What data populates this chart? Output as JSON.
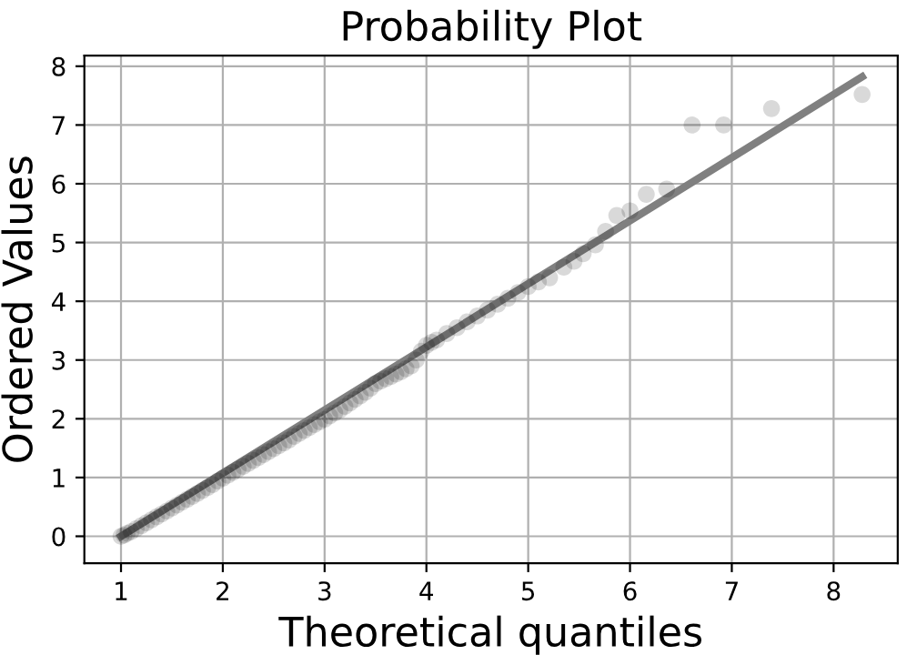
{
  "chart_data": {
    "type": "scatter",
    "title": "Probability Plot",
    "xlabel": "Theoretical quantiles",
    "ylabel": "Ordered Values",
    "xlim": [
      0.64,
      8.63
    ],
    "ylim": [
      -0.46,
      8.18
    ],
    "xticks": [
      1,
      2,
      3,
      4,
      5,
      6,
      7,
      8
    ],
    "yticks": [
      0,
      1,
      2,
      3,
      4,
      5,
      6,
      7,
      8
    ],
    "grid": true,
    "series": [
      {
        "marker": "circle",
        "color": "#000000",
        "x": [
          1.0,
          1.03,
          1.06,
          1.1,
          1.15,
          1.2,
          1.25,
          1.3,
          1.35,
          1.4,
          1.45,
          1.5,
          1.55,
          1.6,
          1.65,
          1.7,
          1.75,
          1.8,
          1.85,
          1.9,
          1.95,
          2.0,
          2.05,
          2.1,
          2.15,
          2.2,
          2.25,
          2.3,
          2.35,
          2.4,
          2.45,
          2.5,
          2.55,
          2.6,
          2.65,
          2.7,
          2.75,
          2.8,
          2.85,
          2.9,
          2.95,
          3.0,
          3.05,
          3.1,
          3.15,
          3.2,
          3.25,
          3.3,
          3.35,
          3.4,
          3.45,
          3.5,
          3.55,
          3.6,
          3.65,
          3.7,
          3.75,
          3.8,
          3.85,
          3.9,
          3.95,
          4.0,
          4.05,
          4.1,
          4.2,
          4.3,
          4.4,
          4.5,
          4.6,
          4.7,
          4.8,
          4.9,
          5.0,
          5.1,
          5.21,
          5.35,
          5.45,
          5.54,
          5.66,
          5.76,
          5.87,
          6.0,
          6.16,
          6.36,
          6.61,
          6.92,
          7.39,
          8.28
        ],
        "values": [
          0.0,
          0.02,
          0.05,
          0.08,
          0.13,
          0.18,
          0.23,
          0.28,
          0.33,
          0.38,
          0.43,
          0.48,
          0.53,
          0.58,
          0.63,
          0.68,
          0.73,
          0.78,
          0.83,
          0.88,
          0.94,
          0.99,
          1.04,
          1.09,
          1.14,
          1.19,
          1.24,
          1.29,
          1.34,
          1.39,
          1.44,
          1.49,
          1.54,
          1.59,
          1.64,
          1.7,
          1.75,
          1.8,
          1.85,
          1.9,
          1.95,
          1.99,
          2.05,
          2.1,
          2.15,
          2.21,
          2.27,
          2.33,
          2.39,
          2.45,
          2.52,
          2.6,
          2.64,
          2.68,
          2.72,
          2.76,
          2.8,
          2.85,
          2.9,
          3.0,
          3.15,
          3.25,
          3.3,
          3.34,
          3.45,
          3.55,
          3.65,
          3.75,
          3.85,
          3.95,
          4.05,
          4.15,
          4.25,
          4.33,
          4.4,
          4.58,
          4.68,
          4.81,
          4.96,
          5.19,
          5.46,
          5.54,
          5.82,
          5.91,
          7.0,
          7.0,
          7.28,
          7.52
        ]
      },
      {
        "type": "line",
        "marker": "none",
        "color": "#808080",
        "x": [
          1.0,
          8.28
        ],
        "values": [
          -0.0,
          7.82
        ]
      }
    ]
  }
}
